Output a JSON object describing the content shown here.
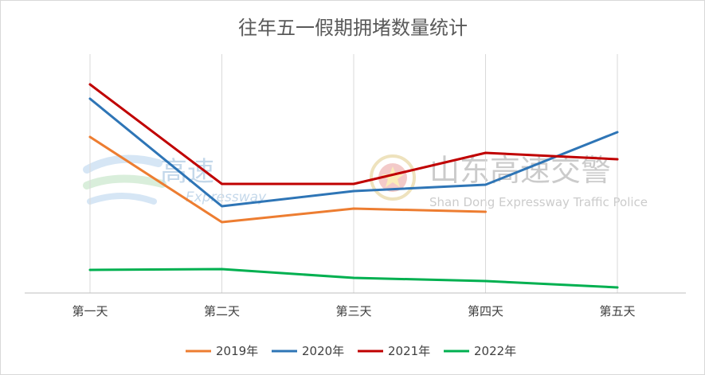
{
  "chart_data": {
    "type": "line",
    "title": "往年五一假期拥堵数量统计",
    "categories": [
      "第一天",
      "第二天",
      "第三天",
      "第四天",
      "第五天"
    ],
    "series": [
      {
        "name": "2019年",
        "color": "#ED7D31",
        "values": [
          196,
          89,
          106,
          102,
          null
        ]
      },
      {
        "name": "2020年",
        "color": "#2E75B6",
        "values": [
          244,
          109,
          128,
          136,
          202
        ]
      },
      {
        "name": "2021年",
        "color": "#C00000",
        "values": [
          262,
          137,
          137,
          176,
          168
        ]
      },
      {
        "name": "2022年",
        "color": "#00B050",
        "values": [
          29,
          30,
          19,
          15,
          7
        ]
      }
    ],
    "xlabel": "",
    "ylabel": "",
    "ylim": [
      0,
      300
    ],
    "grid": "vertical",
    "legend": "bottom"
  },
  "watermarks": {
    "left_logo_main": "高速",
    "left_logo_sub": "Expressway",
    "right_logo_main": "山东高速交警",
    "right_logo_sub": "Shan Dong Expressway Traffic Police"
  }
}
